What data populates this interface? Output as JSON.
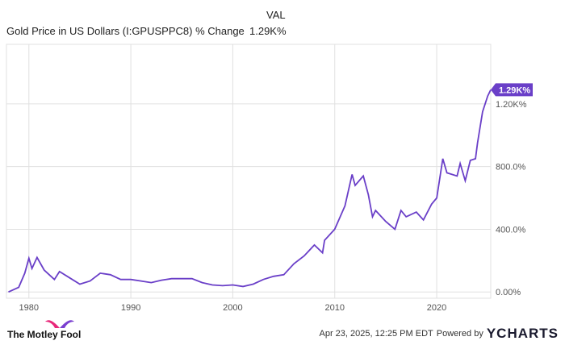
{
  "header": {
    "series_label": "Gold Price in US Dollars (I:GPUSPPC8) % Change",
    "val_header": "VAL",
    "val": "1.29K%"
  },
  "footer": {
    "brand": "The Motley Fool",
    "timestamp": "Apr 23, 2025, 12:25 PM EDT",
    "powered": "Powered by",
    "ycharts": "YCHARTS"
  },
  "colors": {
    "line": "#6a3fc8",
    "grid": "#e0e0e0"
  },
  "chart_data": {
    "type": "line",
    "title": "Gold Price in US Dollars (I:GPUSPPC8) % Change",
    "xlabel": "",
    "ylabel": "",
    "xlim": [
      1977.8,
      2025.3
    ],
    "ylim": [
      -40,
      1580
    ],
    "x_ticks": [
      {
        "v": 1980,
        "label": "1980"
      },
      {
        "v": 1990,
        "label": "1990"
      },
      {
        "v": 2000,
        "label": "2000"
      },
      {
        "v": 2010,
        "label": "2010"
      },
      {
        "v": 2020,
        "label": "2020"
      }
    ],
    "y_ticks": [
      {
        "v": 0,
        "label": "0.00%"
      },
      {
        "v": 400,
        "label": "400.0%"
      },
      {
        "v": 800,
        "label": "800.0%"
      },
      {
        "v": 1200,
        "label": "1.20K%"
      }
    ],
    "end_label": "1.29K%",
    "series": [
      {
        "name": "Gold Price % Change",
        "x": [
          1978,
          1979,
          1979.6,
          1980,
          1980.3,
          1980.8,
          1981.5,
          1982.5,
          1983,
          1984,
          1985,
          1986,
          1987,
          1988,
          1989,
          1990,
          1991,
          1992,
          1993,
          1994,
          1995,
          1996,
          1997,
          1998,
          1999,
          2000,
          2001,
          2002,
          2003,
          2004,
          2005,
          2006,
          2007,
          2008,
          2008.8,
          2009,
          2010,
          2011,
          2011.7,
          2012,
          2012.8,
          2013.3,
          2013.7,
          2014,
          2015,
          2015.9,
          2016.5,
          2017,
          2018,
          2018.7,
          2019.5,
          2020,
          2020.6,
          2021,
          2022,
          2022.3,
          2022.8,
          2023.3,
          2023.8,
          2024,
          2024.5,
          2025,
          2025.3
        ],
        "values": [
          0,
          30,
          120,
          215,
          150,
          220,
          140,
          80,
          130,
          90,
          50,
          70,
          120,
          110,
          80,
          80,
          70,
          60,
          75,
          85,
          85,
          85,
          60,
          45,
          40,
          45,
          35,
          50,
          80,
          100,
          110,
          180,
          230,
          300,
          250,
          330,
          400,
          550,
          750,
          680,
          740,
          620,
          480,
          520,
          450,
          400,
          520,
          480,
          510,
          460,
          560,
          600,
          850,
          760,
          740,
          820,
          710,
          840,
          850,
          950,
          1150,
          1250,
          1290
        ]
      }
    ]
  }
}
